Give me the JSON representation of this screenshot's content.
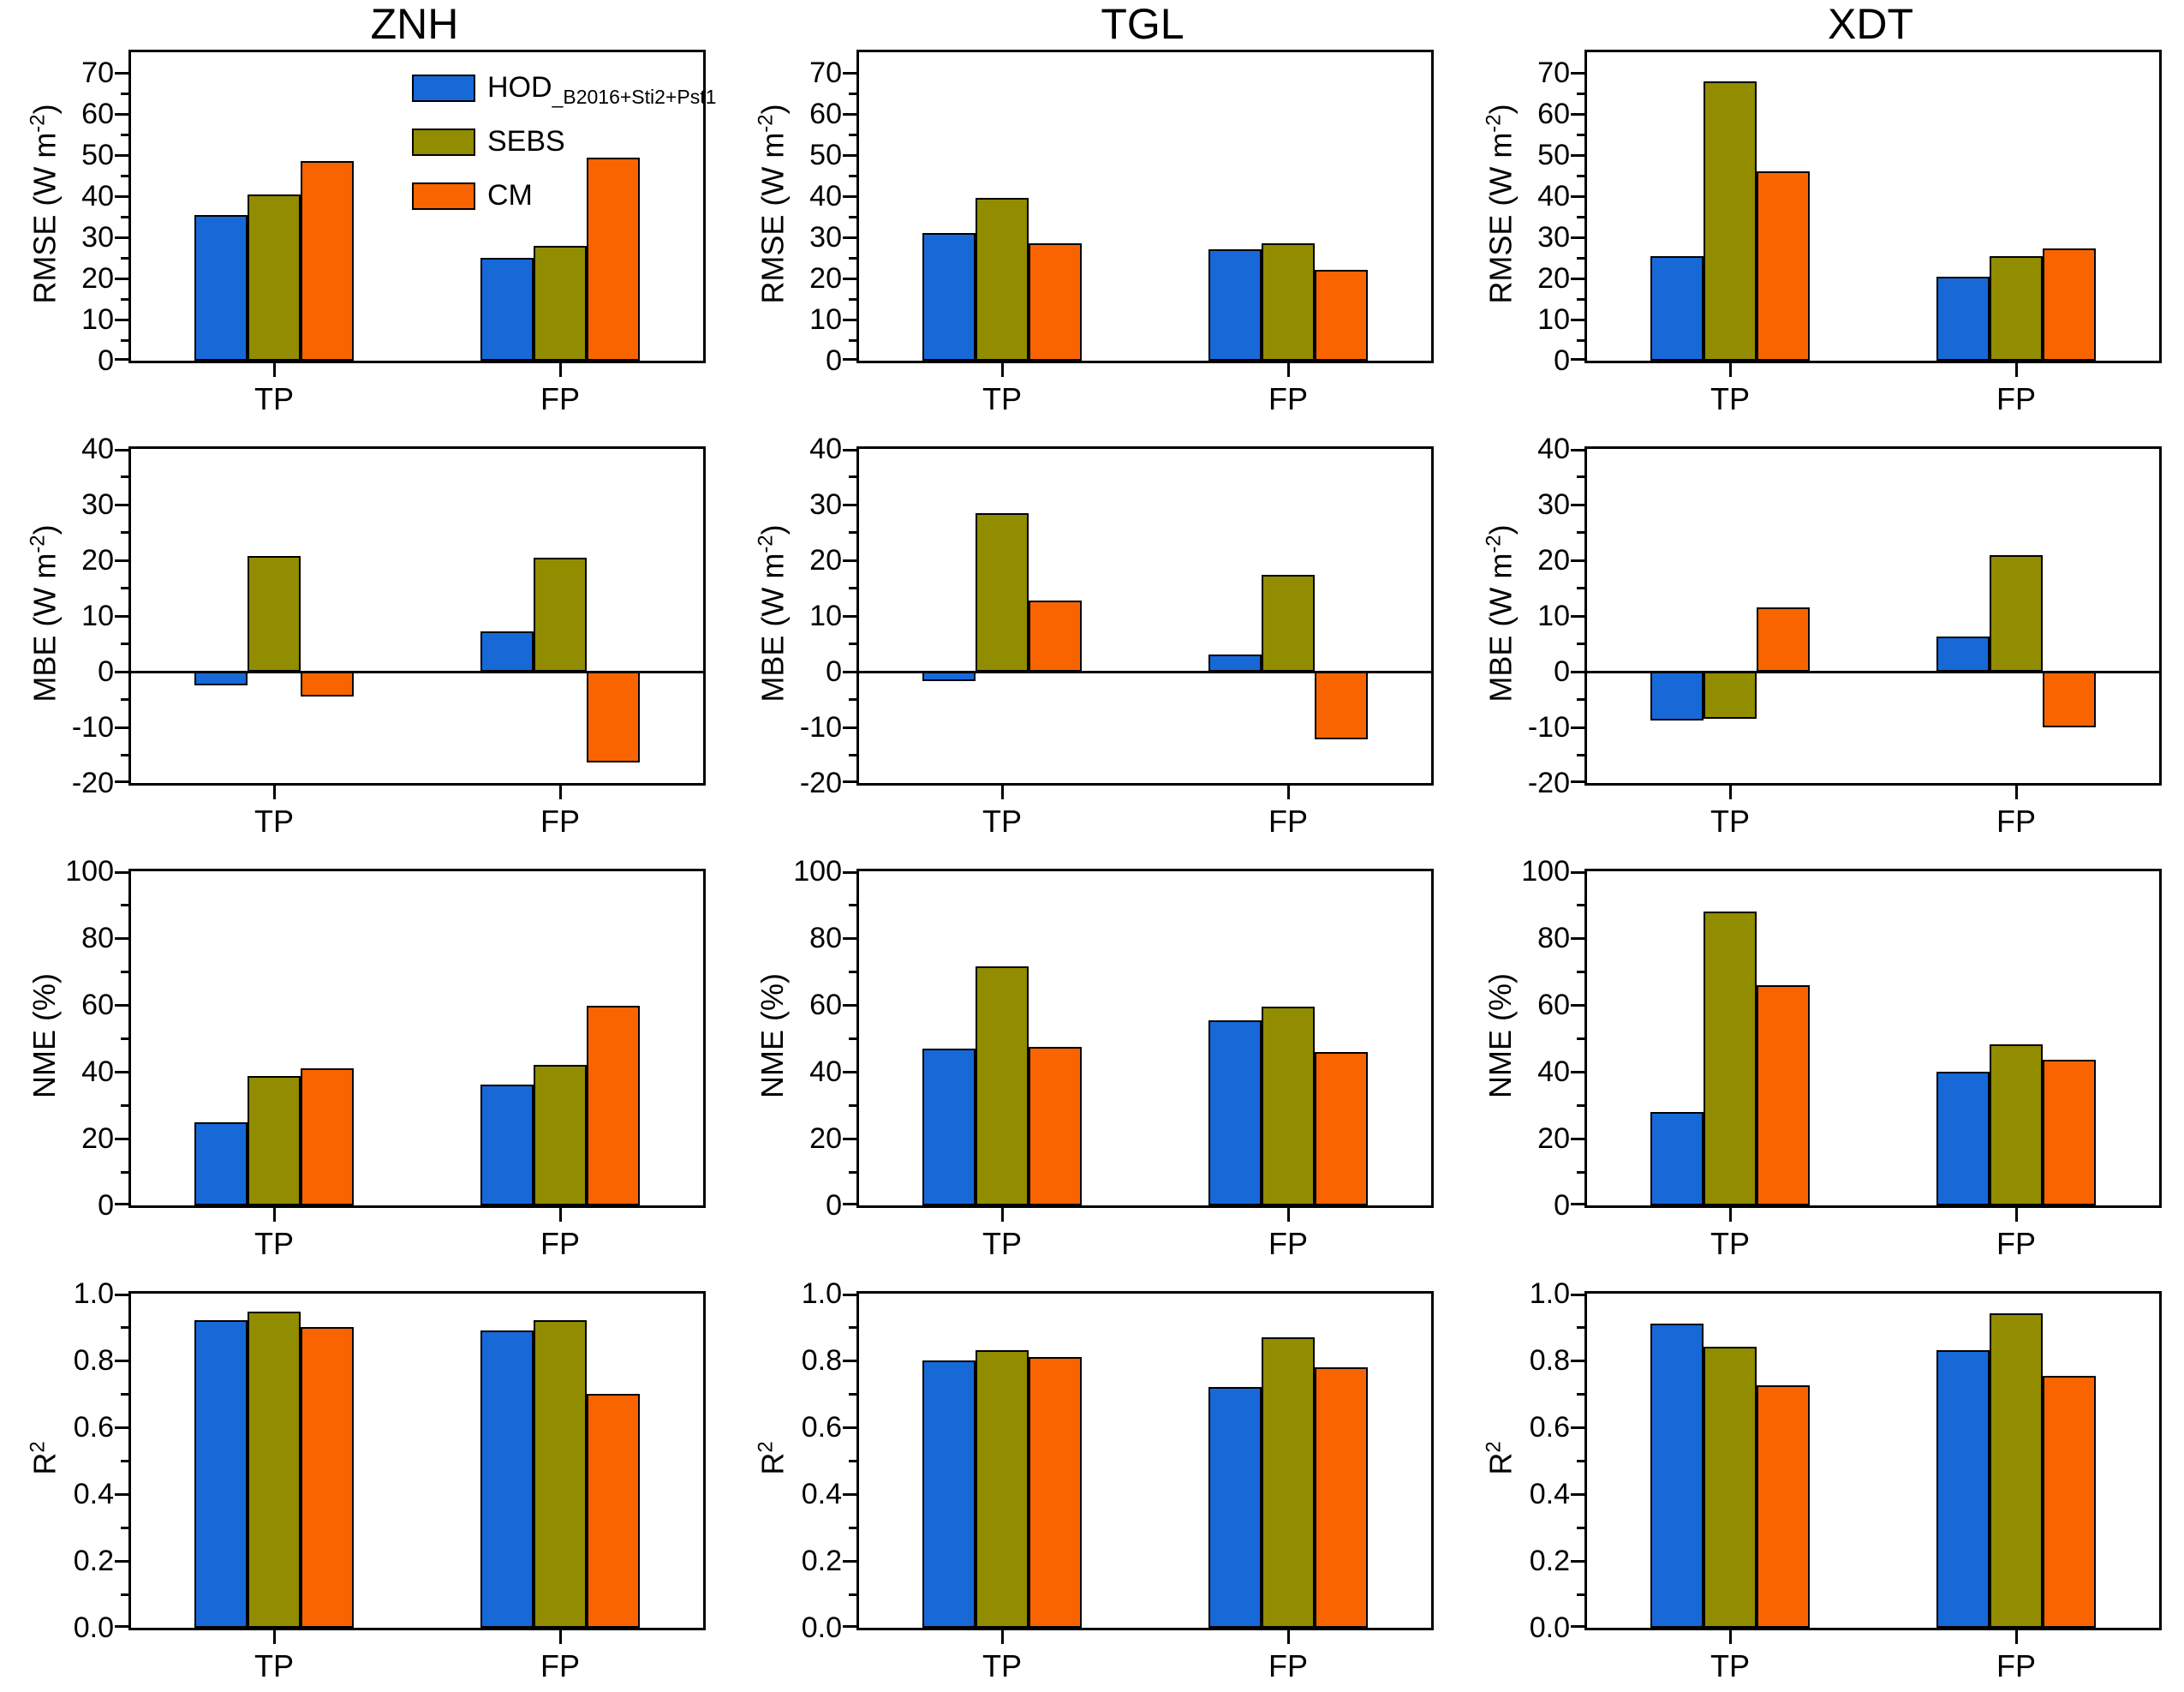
{
  "figure": {
    "columns": [
      "ZNH",
      "TGL",
      "XDT"
    ],
    "categories": [
      "TP",
      "FP"
    ],
    "colors": {
      "hod": "#1769D8",
      "sebs": "#918C00",
      "cm": "#FA6400",
      "axis": "#000000"
    },
    "legend": {
      "position": "top-right-of-first-panel",
      "entries": [
        {
          "label_main": "HOD",
          "label_sub": "_B2016+Sti2+Pst1",
          "color": "#1769D8"
        },
        {
          "label_main": "SEBS",
          "label_sub": "",
          "color": "#918C00"
        },
        {
          "label_main": "CM",
          "label_sub": "",
          "color": "#FA6400"
        }
      ]
    }
  },
  "chart_data": [
    {
      "type": "bar",
      "col": "ZNH",
      "row": "RMSE",
      "ylabel_pre": "RMSE (W m",
      "ylabel_sup": "-2",
      "ylabel_end": ")",
      "ylim": [
        0,
        75
      ],
      "yticks": [
        0,
        10,
        20,
        30,
        40,
        50,
        60,
        70
      ],
      "ytick_labels": [
        "0",
        "10",
        "20",
        "30",
        "40",
        "50",
        "60",
        "70"
      ],
      "yminor": 5,
      "categories": [
        "TP",
        "FP"
      ],
      "grid": false,
      "series": [
        {
          "name": "HOD_B2016+Sti2+Pst1",
          "color": "#1769D8",
          "values": [
            35.5,
            25.0
          ]
        },
        {
          "name": "SEBS",
          "color": "#918C00",
          "values": [
            40.5,
            28.0
          ]
        },
        {
          "name": "CM",
          "color": "#FA6400",
          "values": [
            48.5,
            49.3
          ]
        }
      ]
    },
    {
      "type": "bar",
      "col": "TGL",
      "row": "RMSE",
      "ylabel_pre": "RMSE (W m",
      "ylabel_sup": "-2",
      "ylabel_end": ")",
      "ylim": [
        0,
        75
      ],
      "yticks": [
        0,
        10,
        20,
        30,
        40,
        50,
        60,
        70
      ],
      "ytick_labels": [
        "0",
        "10",
        "20",
        "30",
        "40",
        "50",
        "60",
        "70"
      ],
      "yminor": 5,
      "categories": [
        "TP",
        "FP"
      ],
      "grid": false,
      "series": [
        {
          "name": "HOD_B2016+Sti2+Pst1",
          "color": "#1769D8",
          "values": [
            31.0,
            27.0
          ]
        },
        {
          "name": "SEBS",
          "color": "#918C00",
          "values": [
            39.5,
            28.5
          ]
        },
        {
          "name": "CM",
          "color": "#FA6400",
          "values": [
            28.5,
            22.0
          ]
        }
      ]
    },
    {
      "type": "bar",
      "col": "XDT",
      "row": "RMSE",
      "ylabel_pre": "RMSE (W m",
      "ylabel_sup": "-2",
      "ylabel_end": ")",
      "ylim": [
        0,
        75
      ],
      "yticks": [
        0,
        10,
        20,
        30,
        40,
        50,
        60,
        70
      ],
      "ytick_labels": [
        "0",
        "10",
        "20",
        "30",
        "40",
        "50",
        "60",
        "70"
      ],
      "yminor": 5,
      "categories": [
        "TP",
        "FP"
      ],
      "grid": false,
      "series": [
        {
          "name": "HOD_B2016+Sti2+Pst1",
          "color": "#1769D8",
          "values": [
            25.5,
            20.5
          ]
        },
        {
          "name": "SEBS",
          "color": "#918C00",
          "values": [
            68.0,
            25.5
          ]
        },
        {
          "name": "CM",
          "color": "#FA6400",
          "values": [
            46.0,
            27.3
          ]
        }
      ]
    },
    {
      "type": "bar",
      "col": "ZNH",
      "row": "MBE",
      "ylabel_pre": "MBE (W m",
      "ylabel_sup": "-2",
      "ylabel_end": ")",
      "ylim": [
        -20,
        40
      ],
      "yticks": [
        -20,
        -10,
        0,
        10,
        20,
        30,
        40
      ],
      "ytick_labels": [
        "-20",
        "-10",
        "0",
        "10",
        "20",
        "30",
        "40"
      ],
      "yminor": 5,
      "categories": [
        "TP",
        "FP"
      ],
      "grid": false,
      "series": [
        {
          "name": "HOD_B2016+Sti2+Pst1",
          "color": "#1769D8",
          "values": [
            -2.5,
            7.2
          ]
        },
        {
          "name": "SEBS",
          "color": "#918C00",
          "values": [
            20.7,
            20.4
          ]
        },
        {
          "name": "CM",
          "color": "#FA6400",
          "values": [
            -4.5,
            -16.3
          ]
        }
      ]
    },
    {
      "type": "bar",
      "col": "TGL",
      "row": "MBE",
      "ylabel_pre": "MBE (W m",
      "ylabel_sup": "-2",
      "ylabel_end": ")",
      "ylim": [
        -20,
        40
      ],
      "yticks": [
        -20,
        -10,
        0,
        10,
        20,
        30,
        40
      ],
      "ytick_labels": [
        "-20",
        "-10",
        "0",
        "10",
        "20",
        "30",
        "40"
      ],
      "yminor": 5,
      "categories": [
        "TP",
        "FP"
      ],
      "grid": false,
      "series": [
        {
          "name": "HOD_B2016+Sti2+Pst1",
          "color": "#1769D8",
          "values": [
            -1.7,
            3.1
          ]
        },
        {
          "name": "SEBS",
          "color": "#918C00",
          "values": [
            28.5,
            17.4
          ]
        },
        {
          "name": "CM",
          "color": "#FA6400",
          "values": [
            12.8,
            -12.2
          ]
        }
      ]
    },
    {
      "type": "bar",
      "col": "XDT",
      "row": "MBE",
      "ylabel_pre": "MBE (W m",
      "ylabel_sup": "-2",
      "ylabel_end": ")",
      "ylim": [
        -20,
        40
      ],
      "yticks": [
        -20,
        -10,
        0,
        10,
        20,
        30,
        40
      ],
      "ytick_labels": [
        "-20",
        "-10",
        "0",
        "10",
        "20",
        "30",
        "40"
      ],
      "yminor": 5,
      "categories": [
        "TP",
        "FP"
      ],
      "grid": false,
      "series": [
        {
          "name": "HOD_B2016+Sti2+Pst1",
          "color": "#1769D8",
          "values": [
            -8.8,
            6.3
          ]
        },
        {
          "name": "SEBS",
          "color": "#918C00",
          "values": [
            -8.4,
            20.9
          ]
        },
        {
          "name": "CM",
          "color": "#FA6400",
          "values": [
            11.5,
            -10.0
          ]
        }
      ]
    },
    {
      "type": "bar",
      "col": "ZNH",
      "row": "NME",
      "ylabel_pre": "NME (%)",
      "ylabel_sup": "",
      "ylabel_end": "",
      "ylim": [
        0,
        100
      ],
      "yticks": [
        0,
        20,
        40,
        60,
        80,
        100
      ],
      "ytick_labels": [
        "0",
        "20",
        "40",
        "60",
        "80",
        "100"
      ],
      "yminor": 10,
      "categories": [
        "TP",
        "FP"
      ],
      "grid": false,
      "series": [
        {
          "name": "HOD_B2016+Sti2+Pst1",
          "color": "#1769D8",
          "values": [
            25.0,
            36.2
          ]
        },
        {
          "name": "SEBS",
          "color": "#918C00",
          "values": [
            38.7,
            42.0
          ]
        },
        {
          "name": "CM",
          "color": "#FA6400",
          "values": [
            41.0,
            59.7
          ]
        }
      ]
    },
    {
      "type": "bar",
      "col": "TGL",
      "row": "NME",
      "ylabel_pre": "NME (%)",
      "ylabel_sup": "",
      "ylabel_end": "",
      "ylim": [
        0,
        100
      ],
      "yticks": [
        0,
        20,
        40,
        60,
        80,
        100
      ],
      "ytick_labels": [
        "0",
        "20",
        "40",
        "60",
        "80",
        "100"
      ],
      "yminor": 10,
      "categories": [
        "TP",
        "FP"
      ],
      "grid": false,
      "series": [
        {
          "name": "HOD_B2016+Sti2+Pst1",
          "color": "#1769D8",
          "values": [
            47.0,
            55.5
          ]
        },
        {
          "name": "SEBS",
          "color": "#918C00",
          "values": [
            71.5,
            59.5
          ]
        },
        {
          "name": "CM",
          "color": "#FA6400",
          "values": [
            47.5,
            46.0
          ]
        }
      ]
    },
    {
      "type": "bar",
      "col": "XDT",
      "row": "NME",
      "ylabel_pre": "NME (%)",
      "ylabel_sup": "",
      "ylabel_end": "",
      "ylim": [
        0,
        100
      ],
      "yticks": [
        0,
        20,
        40,
        60,
        80,
        100
      ],
      "ytick_labels": [
        "0",
        "20",
        "40",
        "60",
        "80",
        "100"
      ],
      "yminor": 10,
      "categories": [
        "TP",
        "FP"
      ],
      "grid": false,
      "series": [
        {
          "name": "HOD_B2016+Sti2+Pst1",
          "color": "#1769D8",
          "values": [
            28.0,
            40.0
          ]
        },
        {
          "name": "SEBS",
          "color": "#918C00",
          "values": [
            88.0,
            48.2
          ]
        },
        {
          "name": "CM",
          "color": "#FA6400",
          "values": [
            65.8,
            43.5
          ]
        }
      ]
    },
    {
      "type": "bar",
      "col": "ZNH",
      "row": "R2",
      "ylabel_pre": "R",
      "ylabel_sup": "2",
      "ylabel_end": "",
      "ylim": [
        0,
        1.0
      ],
      "yticks": [
        0,
        0.2,
        0.4,
        0.6,
        0.8,
        1.0
      ],
      "ytick_labels": [
        "0.0",
        "0.2",
        "0.4",
        "0.6",
        "0.8",
        "1.0"
      ],
      "yminor": 0.1,
      "categories": [
        "TP",
        "FP"
      ],
      "grid": false,
      "series": [
        {
          "name": "HOD_B2016+Sti2+Pst1",
          "color": "#1769D8",
          "values": [
            0.92,
            0.89
          ]
        },
        {
          "name": "SEBS",
          "color": "#918C00",
          "values": [
            0.945,
            0.92
          ]
        },
        {
          "name": "CM",
          "color": "#FA6400",
          "values": [
            0.9,
            0.7
          ]
        }
      ]
    },
    {
      "type": "bar",
      "col": "TGL",
      "row": "R2",
      "ylabel_pre": "R",
      "ylabel_sup": "2",
      "ylabel_end": "",
      "ylim": [
        0,
        1.0
      ],
      "yticks": [
        0,
        0.2,
        0.4,
        0.6,
        0.8,
        1.0
      ],
      "ytick_labels": [
        "0.0",
        "0.2",
        "0.4",
        "0.6",
        "0.8",
        "1.0"
      ],
      "yminor": 0.1,
      "categories": [
        "TP",
        "FP"
      ],
      "grid": false,
      "series": [
        {
          "name": "HOD_B2016+Sti2+Pst1",
          "color": "#1769D8",
          "values": [
            0.8,
            0.72
          ]
        },
        {
          "name": "SEBS",
          "color": "#918C00",
          "values": [
            0.83,
            0.87
          ]
        },
        {
          "name": "CM",
          "color": "#FA6400",
          "values": [
            0.81,
            0.78
          ]
        }
      ]
    },
    {
      "type": "bar",
      "col": "XDT",
      "row": "R2",
      "ylabel_pre": "R",
      "ylabel_sup": "2",
      "ylabel_end": "",
      "ylim": [
        0,
        1.0
      ],
      "yticks": [
        0,
        0.2,
        0.4,
        0.6,
        0.8,
        1.0
      ],
      "ytick_labels": [
        "0.0",
        "0.2",
        "0.4",
        "0.6",
        "0.8",
        "1.0"
      ],
      "yminor": 0.1,
      "categories": [
        "TP",
        "FP"
      ],
      "grid": false,
      "series": [
        {
          "name": "HOD_B2016+Sti2+Pst1",
          "color": "#1769D8",
          "values": [
            0.91,
            0.83
          ]
        },
        {
          "name": "SEBS",
          "color": "#918C00",
          "values": [
            0.84,
            0.94
          ]
        },
        {
          "name": "CM",
          "color": "#FA6400",
          "values": [
            0.725,
            0.755
          ]
        }
      ]
    }
  ]
}
